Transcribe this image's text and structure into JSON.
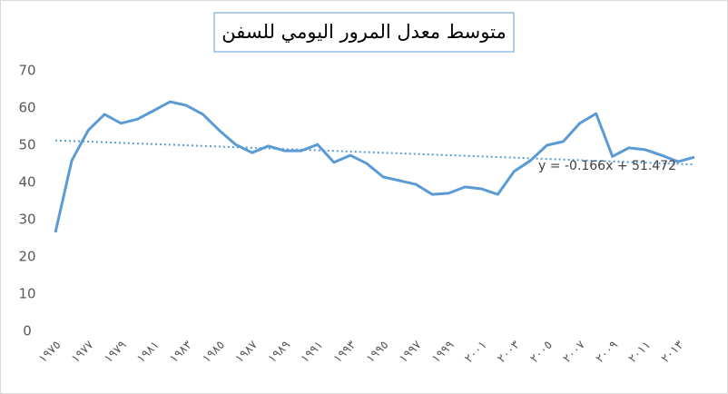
{
  "chart_data": {
    "type": "line",
    "title": "متوسط معدل المرور اليومي للسفن",
    "categories": [
      "١٩٧٥",
      null,
      "١٩٧٧",
      null,
      "١٩٧٩",
      null,
      "١٩٨١",
      null,
      "١٩٨٣",
      null,
      "١٩٨٥",
      null,
      "١٩٨٧",
      null,
      "١٩٨٩",
      null,
      "١٩٩١",
      null,
      "١٩٩٣",
      null,
      "١٩٩٥",
      null,
      "١٩٩٧",
      null,
      "١٩٩٩",
      null,
      "٢٠٠١",
      null,
      "٢٠٠٣",
      null,
      "٢٠٠٥",
      null,
      "٢٠٠٧",
      null,
      "٢٠٠٩",
      null,
      "٢٠١١",
      null,
      "٢٠١٣",
      null
    ],
    "values": [
      26.6,
      45.9,
      54,
      58.3,
      55.9,
      57,
      59.3,
      61.7,
      60.7,
      58.3,
      54,
      50.2,
      48,
      49.8,
      48.5,
      48.5,
      50.2,
      45.4,
      47.3,
      45.1,
      41.5,
      40.5,
      39.5,
      36.8,
      37.1,
      38.8,
      38.3,
      36.8,
      43,
      45.9,
      50,
      51,
      55.9,
      58.5,
      47,
      49.3,
      48.8,
      47.3,
      45.6,
      46.8
    ],
    "color": "#5b9bd5",
    "ylim": [
      0,
      70
    ],
    "yticks": [
      0,
      10,
      20,
      30,
      40,
      50,
      60,
      70
    ],
    "grid": false,
    "trendline": {
      "label": "y = -0.166x + 51.472",
      "slope": -0.166,
      "intercept": 51.472
    }
  }
}
